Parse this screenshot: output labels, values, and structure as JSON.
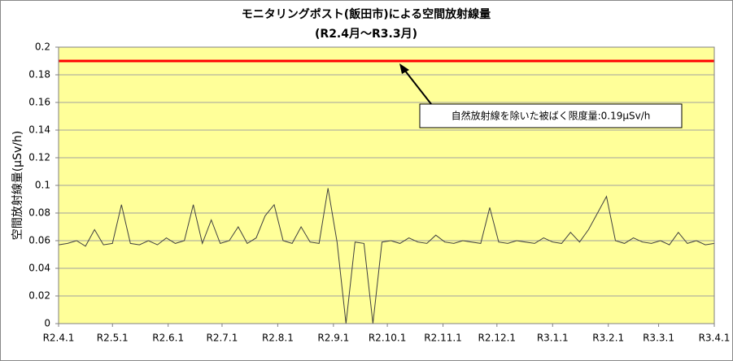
{
  "chart_data": {
    "type": "line",
    "title": "モニタリングポスト(飯田市)による空間放射線量",
    "subtitle": "(R2.4月～R3.3月)",
    "y_label": "空間放射線量(μSv/h)",
    "xlim": [
      0,
      365
    ],
    "xticks": [
      {
        "value": 0,
        "label": "R2.4.1"
      },
      {
        "value": 30,
        "label": "R2.5.1"
      },
      {
        "value": 61,
        "label": "R2.6.1"
      },
      {
        "value": 91,
        "label": "R2.7.1"
      },
      {
        "value": 122,
        "label": "R2.8.1"
      },
      {
        "value": 153,
        "label": "R2.9.1"
      },
      {
        "value": 183,
        "label": "R2.10.1"
      },
      {
        "value": 214,
        "label": "R2.11.1"
      },
      {
        "value": 244,
        "label": "R2.12.1"
      },
      {
        "value": 275,
        "label": "R3.1.1"
      },
      {
        "value": 306,
        "label": "R3.2.1"
      },
      {
        "value": 334,
        "label": "R3.3.1"
      },
      {
        "value": 365,
        "label": "R3.4.1"
      }
    ],
    "ylim": [
      0,
      0.2
    ],
    "yticks": [
      0,
      0.02,
      0.04,
      0.06,
      0.08,
      0.1,
      0.12,
      0.14,
      0.16,
      0.18,
      0.2
    ],
    "grid": true,
    "series": [
      {
        "color": "#404040",
        "x": [
          0,
          5,
          10,
          15,
          20,
          25,
          30,
          35,
          40,
          45,
          50,
          55,
          60,
          65,
          70,
          75,
          80,
          85,
          90,
          95,
          100,
          105,
          110,
          115,
          120,
          125,
          130,
          135,
          140,
          145,
          150,
          155,
          160,
          165,
          170,
          175,
          180,
          185,
          190,
          195,
          200,
          205,
          210,
          215,
          220,
          225,
          230,
          235,
          240,
          245,
          250,
          255,
          260,
          265,
          270,
          275,
          280,
          285,
          290,
          295,
          300,
          305,
          310,
          315,
          320,
          325,
          330,
          335,
          340,
          345,
          350,
          355,
          360,
          365
        ],
        "values": [
          0.057,
          0.058,
          0.06,
          0.056,
          0.068,
          0.057,
          0.058,
          0.086,
          0.058,
          0.057,
          0.06,
          0.057,
          0.062,
          0.058,
          0.06,
          0.086,
          0.058,
          0.075,
          0.058,
          0.06,
          0.07,
          0.058,
          0.062,
          0.078,
          0.086,
          0.06,
          0.058,
          0.07,
          0.059,
          0.058,
          0.098,
          0.059,
          0,
          0.059,
          0.058,
          0,
          0.059,
          0.06,
          0.058,
          0.062,
          0.059,
          0.058,
          0.064,
          0.059,
          0.058,
          0.06,
          0.059,
          0.058,
          0.084,
          0.059,
          0.058,
          0.06,
          0.059,
          0.058,
          0.062,
          0.059,
          0.058,
          0.066,
          0.059,
          0.068,
          0.08,
          0.092,
          0.06,
          0.058,
          0.062,
          0.059,
          0.058,
          0.06,
          0.057,
          0.066,
          0.058,
          0.06,
          0.057,
          0.058
        ]
      }
    ],
    "reference_line": {
      "value": 0.19,
      "color": "#ff0000"
    },
    "annotation": "自然放射線を除いた被ばく限度量:0.19μSv/h"
  }
}
